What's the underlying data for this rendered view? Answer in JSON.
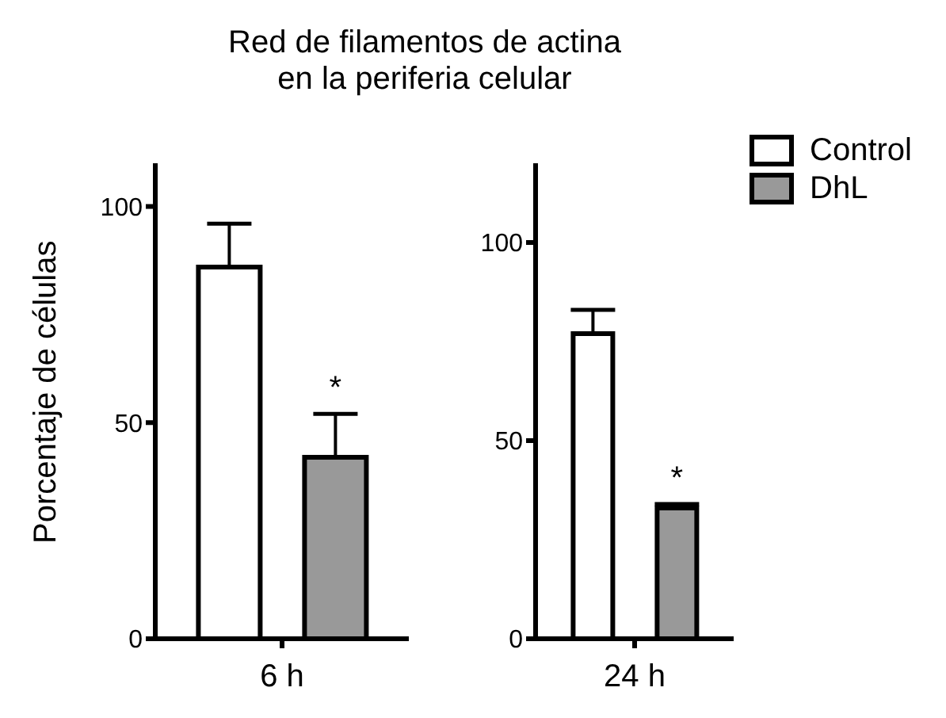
{
  "chart_data": [
    {
      "type": "bar",
      "title": "Red de filamentos de actina\nen la periferia celular",
      "ylabel": "Porcentaje de células",
      "categories": [
        "6 h"
      ],
      "ylim": [
        0,
        110
      ],
      "yticks": [
        0,
        50,
        100
      ],
      "annotations": [
        "*"
      ],
      "series": [
        {
          "color": "#ffffff",
          "values": [
            86
          ],
          "errors": [
            10
          ]
        },
        {
          "color": "#999999",
          "values": [
            42
          ],
          "errors": [
            10
          ]
        }
      ]
    },
    {
      "type": "bar",
      "categories": [
        "24 h"
      ],
      "ylim": [
        0,
        120
      ],
      "yticks": [
        0,
        50,
        100
      ],
      "annotations": [
        "*"
      ],
      "legend": "top right",
      "series": [
        {
          "name": "Control",
          "color": "#ffffff",
          "values": [
            77
          ],
          "errors": [
            6
          ]
        },
        {
          "name": "DhL",
          "color": "#999999",
          "values": [
            33
          ],
          "errors": [
            1
          ]
        }
      ]
    }
  ]
}
